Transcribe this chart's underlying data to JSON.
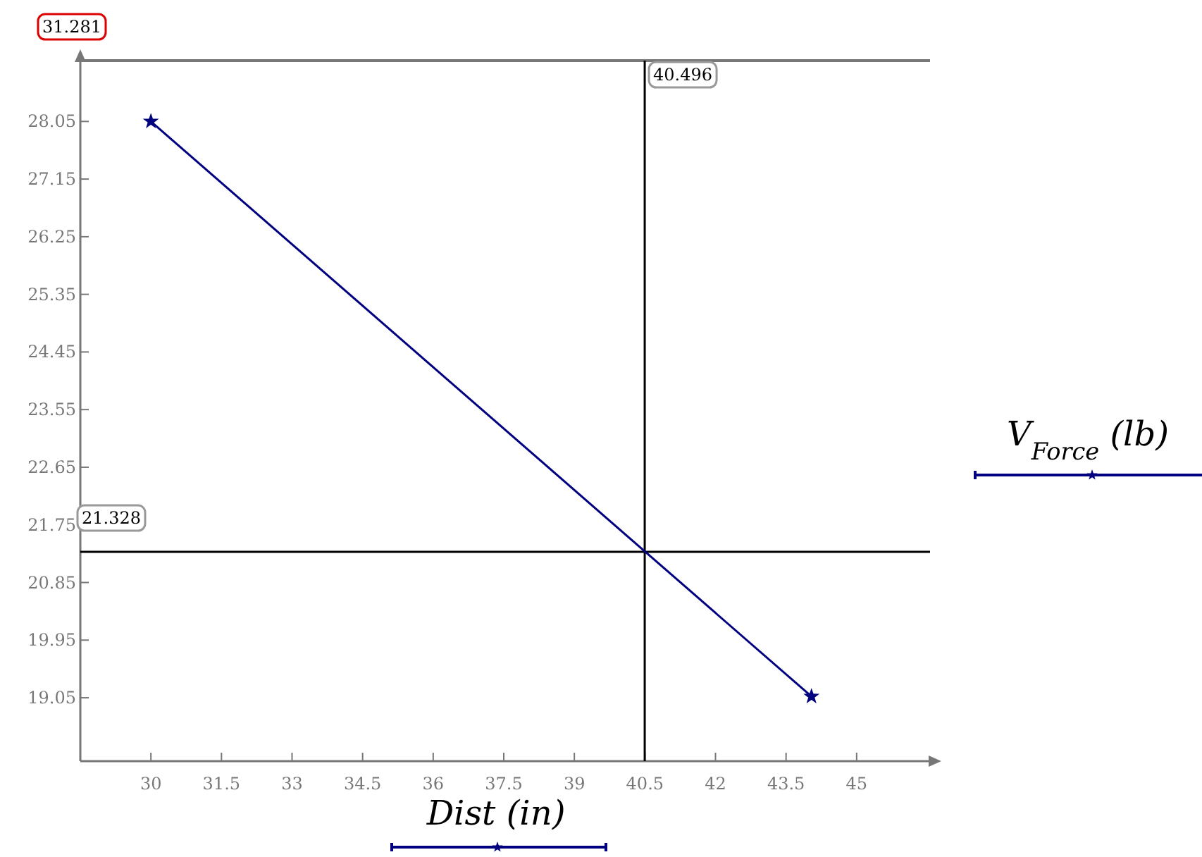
{
  "chart_data": {
    "type": "line",
    "xlabel": "Dist (in)",
    "ylabel": "V$_{Force}$ (lb)",
    "x": [
      30,
      44.04
    ],
    "series": [
      {
        "color": "#000080",
        "values": [
          28.05,
          19.07
        ]
      }
    ],
    "marker": "star",
    "line_style": "solid",
    "grid": false,
    "xlim": [
      28.5,
      46.56
    ],
    "xticks": [
      30,
      31.5,
      33,
      34.5,
      36,
      37.5,
      39,
      40.5,
      42,
      43.5,
      45
    ],
    "ylim": [
      18.06,
      29.0
    ],
    "yticks": [
      19.05,
      19.95,
      20.85,
      21.75,
      22.65,
      23.55,
      24.45,
      25.35,
      26.25,
      27.15,
      28.05
    ],
    "ref_lines": [
      {
        "axis": "x",
        "value": 40.496,
        "label": "40.496",
        "color": "#000000"
      },
      {
        "axis": "y",
        "value": 21.328,
        "label": "21.328",
        "color": "#000000"
      }
    ],
    "annotations": [
      "31.281"
    ]
  }
}
